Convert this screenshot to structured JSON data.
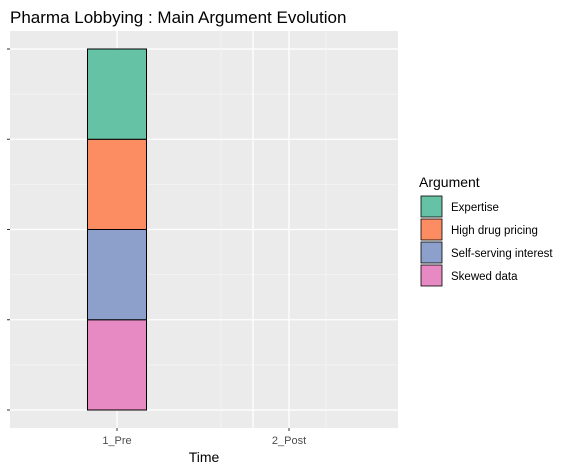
{
  "chart_data": {
    "type": "bar",
    "stacked": true,
    "title": "Pharma Lobbying : Main Argument Evolution",
    "xlabel": "Time",
    "ylabel": "",
    "categories": [
      "1_Pre",
      "2_Post"
    ],
    "ylim": [
      0,
      4
    ],
    "legend": {
      "title": "Argument",
      "placement": "right"
    },
    "series": [
      {
        "name": "Expertise",
        "color": "#66C2A5",
        "values": [
          1,
          0
        ]
      },
      {
        "name": "High drug pricing",
        "color": "#FC8D62",
        "values": [
          1,
          0
        ]
      },
      {
        "name": "Self-serving interest",
        "color": "#8DA0CB",
        "values": [
          1,
          0
        ]
      },
      {
        "name": "Skewed data",
        "color": "#E78AC3",
        "values": [
          1,
          0
        ]
      }
    ],
    "grid": true,
    "panel_background": "#EBEBEB"
  }
}
